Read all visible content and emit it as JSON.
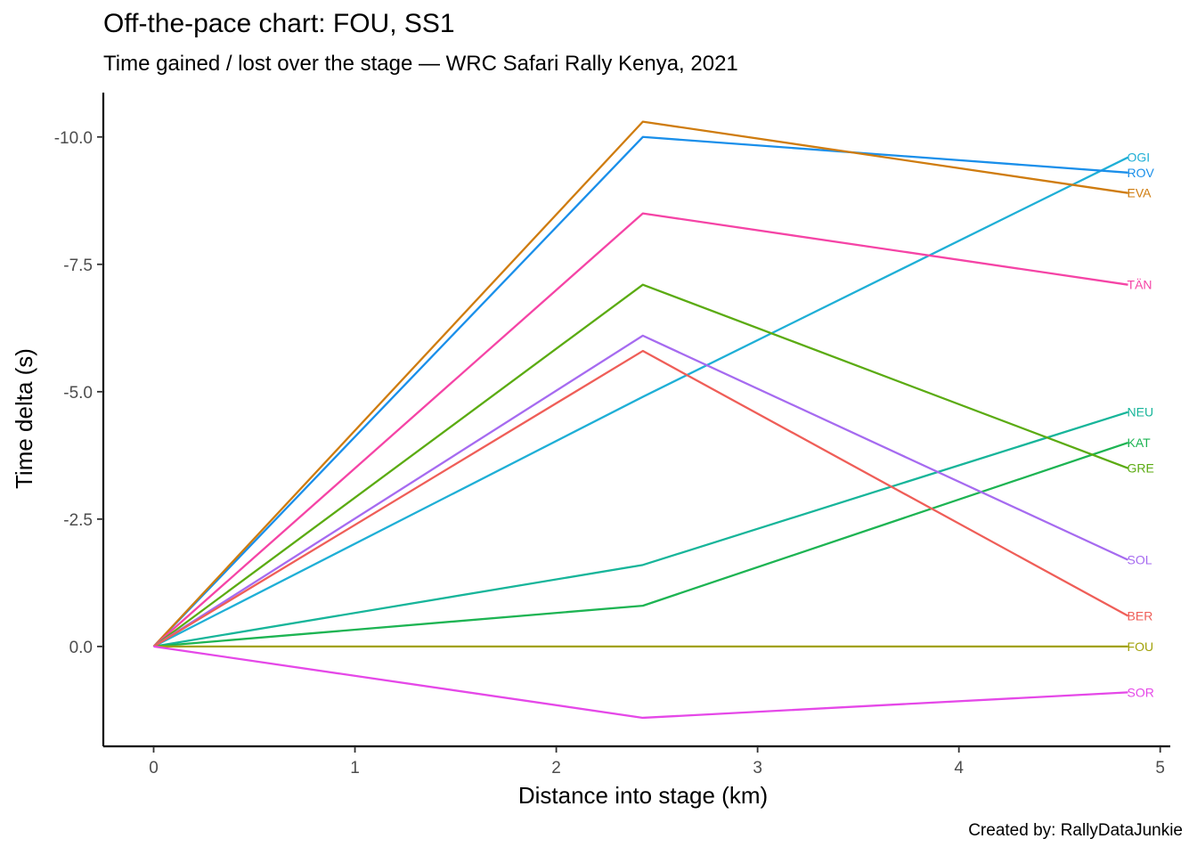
{
  "chart_data": {
    "type": "line",
    "title": "Off-the-pace chart: FOU, SS1",
    "subtitle": "Time gained / lost over the stage — WRC Safari Rally Kenya, 2021",
    "xlabel": "Distance into stage (km)",
    "ylabel": "Time delta (s)",
    "caption": "Created by: RallyDataJunkie",
    "xlim": [
      -0.25,
      5.05
    ],
    "ylim": [
      -10.87,
      1.96
    ],
    "y_reversed": true,
    "grid": false,
    "legend": "none",
    "x_ticks": [
      0,
      1,
      2,
      3,
      4,
      5
    ],
    "x_tick_labels": [
      "0",
      "1",
      "2",
      "3",
      "4",
      "5"
    ],
    "y_ticks": [
      -10,
      -7.5,
      -5,
      -2.5,
      0
    ],
    "y_tick_labels": [
      "-10.0",
      "-7.5",
      "-5.0",
      "-2.5",
      "0.0"
    ],
    "x": [
      0,
      2.43,
      4.84
    ],
    "series": [
      {
        "name": "OGI",
        "color": "#1FAFD6",
        "values": [
          0,
          -4.9,
          -9.6
        ]
      },
      {
        "name": "ROV",
        "color": "#1A8FEA",
        "values": [
          0,
          -10.0,
          -9.3
        ]
      },
      {
        "name": "EVA",
        "color": "#CF7C0F",
        "values": [
          0,
          -10.3,
          -8.9
        ]
      },
      {
        "name": "TÄN",
        "color": "#F544A6",
        "values": [
          0,
          -8.5,
          -7.1
        ]
      },
      {
        "name": "NEU",
        "color": "#17B59A",
        "values": [
          0,
          -1.6,
          -4.6
        ]
      },
      {
        "name": "KAT",
        "color": "#1DB453",
        "values": [
          0,
          -0.8,
          -4.0
        ]
      },
      {
        "name": "GRE",
        "color": "#5BAB12",
        "values": [
          0,
          -7.1,
          -3.5
        ]
      },
      {
        "name": "SOL",
        "color": "#A66BF0",
        "values": [
          0,
          -6.1,
          -1.7
        ]
      },
      {
        "name": "BER",
        "color": "#EF5E58",
        "values": [
          0,
          -5.8,
          -0.6
        ]
      },
      {
        "name": "FOU",
        "color": "#A1A109",
        "values": [
          0,
          0,
          0
        ]
      },
      {
        "name": "SOR",
        "color": "#E548E8",
        "values": [
          0,
          1.4,
          0.9
        ]
      }
    ]
  }
}
